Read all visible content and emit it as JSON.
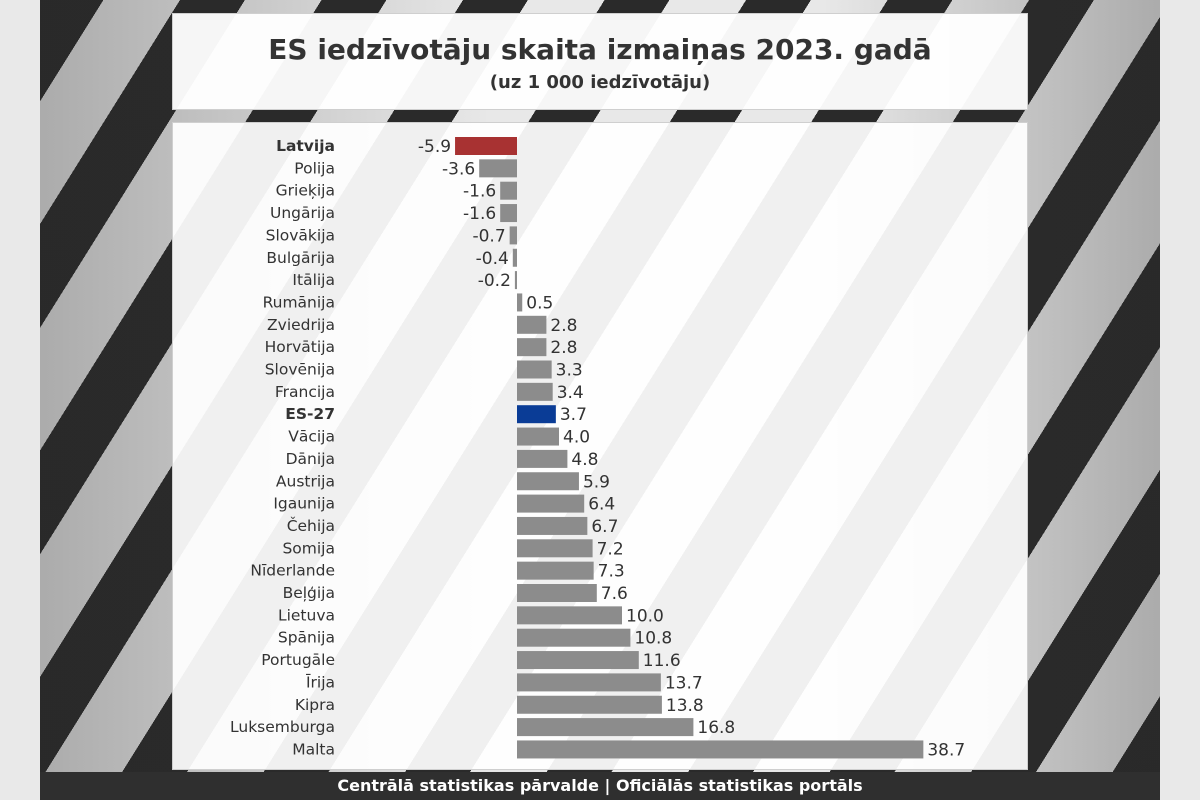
{
  "title": "ES iedzīvotāju skaita izmaiņas 2023. gadā",
  "subtitle": "(uz 1 000 iedzīvotāju)",
  "footer": "Centrālā statistikas pārvalde | Oficiālās statistikas portāls",
  "colors": {
    "default_bar": "#8c8c8c",
    "latvia_bar": "#a83232",
    "eu_bar": "#0a3c96"
  },
  "chart_data": {
    "type": "bar",
    "orientation": "horizontal",
    "title": "ES iedzīvotāju skaita izmaiņas 2023. gadā",
    "subtitle": "(uz 1 000 iedzīvotāju)",
    "xlabel": "",
    "ylabel": "",
    "grid": false,
    "xlim": [
      -5.9,
      38.7
    ],
    "categories": [
      "Latvija",
      "Polija",
      "Grieķija",
      "Ungārija",
      "Slovākija",
      "Bulgārija",
      "Itālija",
      "Rumānija",
      "Zviedrija",
      "Horvātija",
      "Slovēnija",
      "Francija",
      "ES-27",
      "Vācija",
      "Dānija",
      "Austrija",
      "Igaunija",
      "Čehija",
      "Somija",
      "Nīderlande",
      "Beļģija",
      "Lietuva",
      "Spānija",
      "Portugāle",
      "Īrija",
      "Kipra",
      "Luksemburga",
      "Malta"
    ],
    "values": [
      -5.9,
      -3.6,
      -1.6,
      -1.6,
      -0.7,
      -0.4,
      -0.2,
      0.5,
      2.8,
      2.8,
      3.3,
      3.4,
      3.7,
      4.0,
      4.8,
      5.9,
      6.4,
      6.7,
      7.2,
      7.3,
      7.6,
      10.0,
      10.8,
      11.6,
      13.7,
      13.8,
      16.8,
      38.7
    ],
    "value_labels": [
      "-5.9",
      "-3.6",
      "-1.6",
      "-1.6",
      "-0.7",
      "-0.4",
      "-0.2",
      "0.5",
      "2.8",
      "2.8",
      "3.3",
      "3.4",
      "3.7",
      "4.0",
      "4.8",
      "5.9",
      "6.4",
      "6.7",
      "7.2",
      "7.3",
      "7.6",
      "10.0",
      "10.8",
      "11.6",
      "13.7",
      "13.8",
      "16.8",
      "38.7"
    ],
    "highlight": {
      "Latvija": "latvia_bar",
      "ES-27": "eu_bar"
    },
    "bold_categories": [
      "Latvija",
      "ES-27"
    ]
  }
}
